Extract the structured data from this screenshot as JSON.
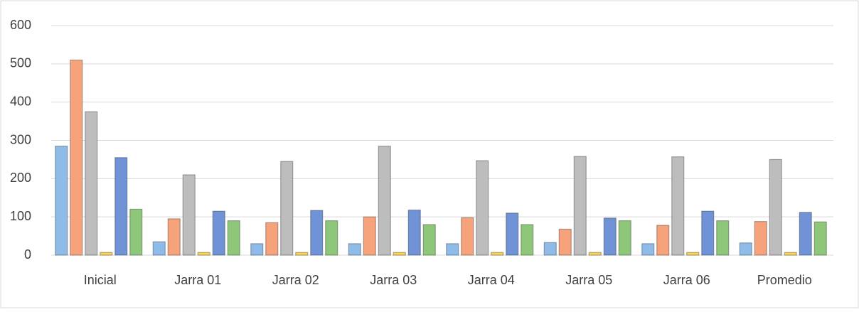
{
  "chart_data": {
    "type": "bar",
    "categories": [
      "Inicial",
      "Jarra 01",
      "Jarra 02",
      "Jarra 03",
      "Jarra 04",
      "Jarra 05",
      "Jarra 06",
      "Promedio"
    ],
    "series": [
      {
        "color": "#8fbbe8",
        "values": [
          285,
          35,
          30,
          30,
          30,
          33,
          30,
          32
        ]
      },
      {
        "color": "#f6a27a",
        "values": [
          510,
          95,
          85,
          100,
          98,
          68,
          78,
          88
        ]
      },
      {
        "color": "#bdbdbd",
        "values": [
          375,
          210,
          245,
          285,
          247,
          258,
          257,
          250
        ]
      },
      {
        "color": "#ffd54f",
        "values": [
          7,
          7,
          7,
          7,
          7,
          7,
          7,
          7
        ]
      },
      {
        "color": "#6f93d6",
        "values": [
          255,
          115,
          117,
          118,
          110,
          97,
          115,
          112
        ]
      },
      {
        "color": "#8ec77a",
        "values": [
          120,
          90,
          90,
          80,
          80,
          90,
          90,
          87
        ]
      }
    ],
    "ylim": [
      0,
      600
    ],
    "yticks": [
      0,
      100,
      200,
      300,
      400,
      500,
      600
    ],
    "grid": true
  }
}
